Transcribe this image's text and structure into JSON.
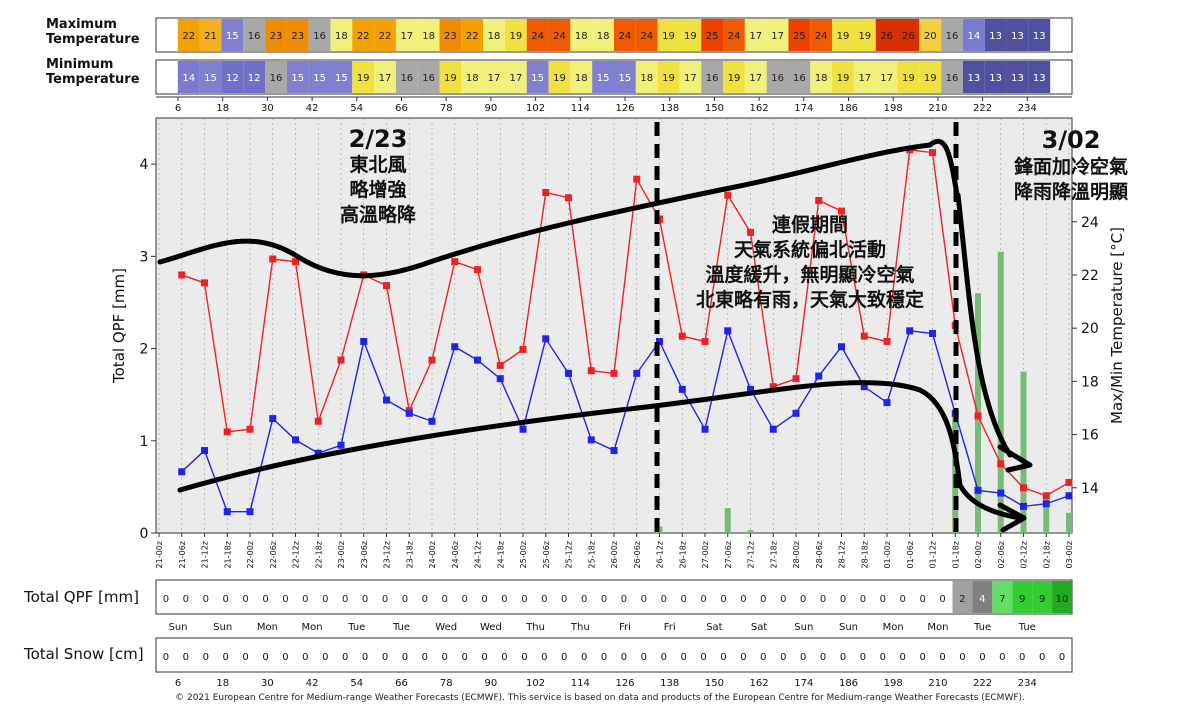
{
  "rows": {
    "max_temp_label": "Maximum Temperature",
    "min_temp_label": "Minimum Temperature",
    "total_qpf_label": "Total QPF [mm]",
    "total_snow_label": "Total Snow [cm]"
  },
  "hour_ticks": [
    "6",
    "18",
    "30",
    "42",
    "54",
    "66",
    "78",
    "90",
    "102",
    "114",
    "126",
    "138",
    "150",
    "162",
    "174",
    "186",
    "198",
    "210",
    "222",
    "234"
  ],
  "max_temp_cells": [
    22,
    21,
    15,
    16,
    23,
    23,
    16,
    18,
    22,
    22,
    17,
    18,
    23,
    22,
    18,
    19,
    24,
    24,
    18,
    18,
    24,
    24,
    19,
    19,
    25,
    24,
    17,
    17,
    25,
    24,
    19,
    19,
    26,
    26,
    20,
    16,
    14,
    13,
    13,
    13
  ],
  "min_temp_cells": [
    14,
    15,
    12,
    12,
    16,
    15,
    15,
    15,
    19,
    17,
    16,
    16,
    19,
    18,
    17,
    17,
    15,
    19,
    18,
    15,
    15,
    18,
    19,
    17,
    16,
    19,
    17,
    16,
    16,
    18,
    19,
    17,
    17,
    19,
    19,
    16,
    13,
    13,
    13,
    13
  ],
  "qpf_row": [
    0,
    0,
    0,
    0,
    0,
    0,
    0,
    0,
    0,
    0,
    0,
    0,
    0,
    0,
    0,
    0,
    0,
    0,
    0,
    0,
    0,
    0,
    0,
    0,
    0,
    0,
    0,
    0,
    0,
    0,
    0,
    0,
    0,
    0,
    0,
    0,
    0,
    0,
    0,
    0,
    2,
    4,
    7,
    9,
    9,
    10
  ],
  "snow_row": [
    0,
    0,
    0,
    0,
    0,
    0,
    0,
    0,
    0,
    0,
    0,
    0,
    0,
    0,
    0,
    0,
    0,
    0,
    0,
    0,
    0,
    0,
    0,
    0,
    0,
    0,
    0,
    0,
    0,
    0,
    0,
    0,
    0,
    0,
    0,
    0,
    0,
    0,
    0,
    0,
    0,
    0,
    0,
    0,
    0,
    0
  ],
  "day_labels": [
    "Sun",
    "Sun",
    "Mon",
    "Mon",
    "Tue",
    "Tue",
    "Wed",
    "Wed",
    "Thu",
    "Thu",
    "Fri",
    "Fri",
    "Sat",
    "Sat",
    "Sun",
    "Sun",
    "Mon",
    "Mon",
    "Tue",
    "Tue"
  ],
  "temp_colors": {
    "12": "#7070c8",
    "13": "#5050a0",
    "14": "#7a7ad0",
    "15": "#8080d0",
    "16": "#a8a8a8",
    "17": "#f0f07a",
    "18": "#f0f07a",
    "19": "#f0e040",
    "20": "#f4d040",
    "21": "#f4b020",
    "22": "#f4a000",
    "23": "#f08c00",
    "24": "#f05a00",
    "25": "#f04000",
    "26": "#d83000"
  },
  "qpf_colors": {
    "0": "#ffffff",
    "2": "#a0a0a0",
    "4": "#808080",
    "7": "#66dd66",
    "9": "#33cc33",
    "10": "#22aa22"
  },
  "annotations": {
    "a1_line1": "2/23",
    "a1_line2": "東北風",
    "a1_line3": "略增強",
    "a1_line4": "高溫略降",
    "a2_line1": "連假期間",
    "a2_line2": "天氣系統偏北活動",
    "a2_line3": "溫度緩升，無明顯冷空氣",
    "a2_line4": "北東略有雨，天氣大致穩定",
    "a3_line1": "3/02",
    "a3_line2": "鋒面加冷空氣",
    "a3_line3": "降雨降溫明顯"
  },
  "copyright": "© 2021 European Centre for Medium-range Weather Forecasts (ECMWF). This service is based on data and products of the European Centre for Medium-range Weather Forecasts (ECMWF).",
  "chart_data": {
    "type": "line",
    "xlabel": "",
    "ylabel": "Total QPF  [mm]",
    "y2label": "Max/Min Temperature  [°C]",
    "ylim": [
      0,
      4.5
    ],
    "y2lim": [
      12.3,
      27.9
    ],
    "yticks": [
      0,
      1,
      2,
      3,
      4
    ],
    "y2ticks": [
      14,
      16,
      18,
      20,
      22,
      24,
      26
    ],
    "grid": true,
    "x_labels": [
      "21-00z",
      "21-06z",
      "21-12z",
      "21-18z",
      "22-00z",
      "22-06z",
      "22-12z",
      "22-18z",
      "23-00z",
      "23-06z",
      "23-12z",
      "23-18z",
      "24-00z",
      "24-06z",
      "24-12z",
      "24-18z",
      "25-00z",
      "25-06z",
      "25-12z",
      "25-18z",
      "26-00z",
      "26-06z",
      "26-12z",
      "26-18z",
      "27-00z",
      "27-06z",
      "27-12z",
      "27-18z",
      "28-00z",
      "28-06z",
      "28-12z",
      "28-18z",
      "01-00z",
      "01-06z",
      "01-12z",
      "01-18z",
      "02-00z",
      "02-06z",
      "02-12z",
      "02-18z",
      "03-00z"
    ],
    "series": [
      {
        "type": "line",
        "axis": "temp",
        "color": "#ee2222",
        "values": [
          22.0,
          21.7,
          16.1,
          16.2,
          22.6,
          22.5,
          16.5,
          18.8,
          22.0,
          21.6,
          16.9,
          18.8,
          22.5,
          22.2,
          18.6,
          19.2,
          25.1,
          24.9,
          18.4,
          18.3,
          25.6,
          24.1,
          19.7,
          19.5,
          25.0,
          23.6,
          17.8,
          18.1,
          24.8,
          24.4,
          19.7,
          19.5,
          26.7,
          26.6,
          20.1,
          16.7,
          14.9,
          14.0,
          13.7,
          14.2
        ],
        "x_index": [
          1,
          2,
          3,
          4,
          5,
          6,
          7,
          8,
          9,
          10,
          11,
          12,
          13,
          14,
          15,
          16,
          17,
          18,
          19,
          20,
          21,
          22,
          23,
          24,
          25,
          26,
          27,
          28,
          29,
          30,
          31,
          32,
          33,
          34,
          35,
          36,
          37,
          38,
          39,
          40
        ]
      },
      {
        "type": "line",
        "axis": "temp",
        "color": "#2222ee",
        "values": [
          14.6,
          15.4,
          13.1,
          13.1,
          16.6,
          15.8,
          15.3,
          15.6,
          19.5,
          17.3,
          16.8,
          16.5,
          19.3,
          18.8,
          18.1,
          16.2,
          19.6,
          18.3,
          15.8,
          15.4,
          18.3,
          19.5,
          17.7,
          16.2,
          19.9,
          17.7,
          16.2,
          16.8,
          18.2,
          19.3,
          17.8,
          17.2,
          19.9,
          19.8,
          16.8,
          13.9,
          13.8,
          13.3,
          13.4,
          13.7
        ],
        "x_index": [
          1,
          2,
          3,
          4,
          5,
          6,
          7,
          8,
          9,
          10,
          11,
          12,
          13,
          14,
          15,
          16,
          17,
          18,
          19,
          20,
          21,
          22,
          23,
          24,
          25,
          26,
          27,
          28,
          29,
          30,
          31,
          32,
          33,
          34,
          35,
          36,
          37,
          38,
          39,
          40
        ]
      },
      {
        "type": "bar",
        "axis": "qpf",
        "color": "#77bb77",
        "values": [
          0,
          0,
          0,
          0,
          0,
          0,
          0,
          0,
          0,
          0,
          0,
          0,
          0,
          0,
          0,
          0,
          0,
          0,
          0,
          0,
          0,
          0,
          0.07,
          0,
          0,
          0.27,
          0.03,
          0,
          0,
          0,
          0,
          0,
          0,
          0,
          0,
          1.3,
          2.6,
          3.05,
          1.75,
          0.4,
          0.22
        ],
        "x_index": [
          0,
          1,
          2,
          3,
          4,
          5,
          6,
          7,
          8,
          9,
          10,
          11,
          12,
          13,
          14,
          15,
          16,
          17,
          18,
          19,
          20,
          21,
          22,
          23,
          24,
          25,
          26,
          27,
          28,
          29,
          30,
          31,
          32,
          33,
          34,
          35,
          36,
          37,
          38,
          39,
          40
        ]
      }
    ]
  }
}
